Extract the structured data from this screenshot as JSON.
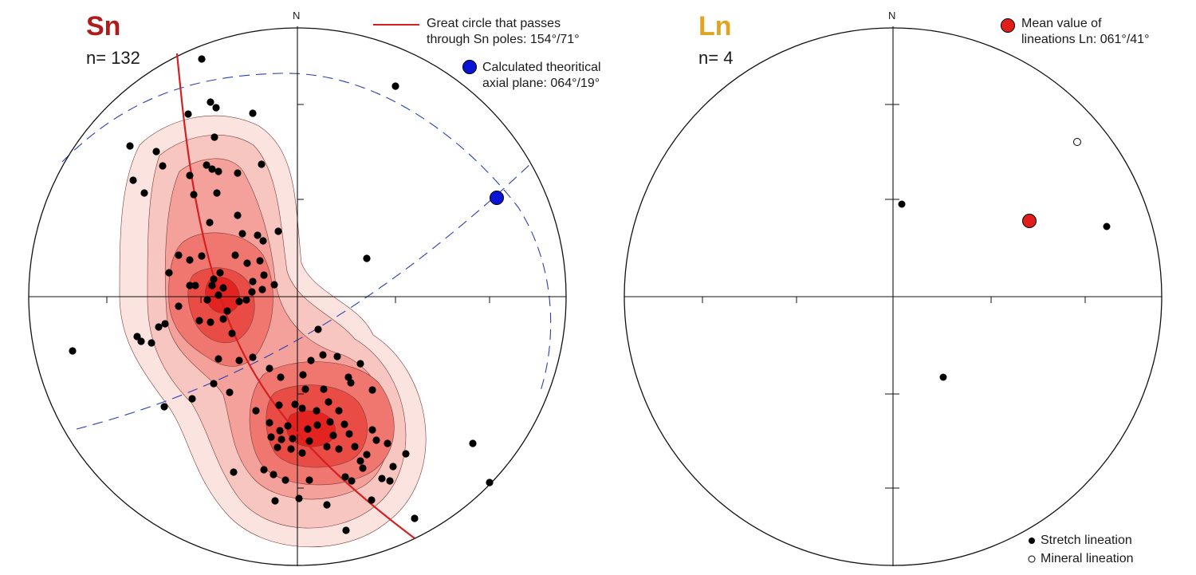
{
  "left_panel": {
    "title": "Sn",
    "title_color": "#b01c1c",
    "count_label": "n= 132",
    "north_label": "N",
    "legend": {
      "great_circle_text": "Great circle that passes\nthrough Sn poles: 154°/71°",
      "great_circle_color": "#d42020",
      "axial_plane_text": "Calculated theoritical\naxial plane: 064°/19°",
      "axial_plane_color": "#0a14d6"
    },
    "contour_colors": [
      "#fbe3e0",
      "#f8c6c1",
      "#f4a19b",
      "#ef7770",
      "#e94b45",
      "#e3231f"
    ],
    "dashed_line_color": "#2a3fb0"
  },
  "right_panel": {
    "title": "Ln",
    "title_color": "#e0a322",
    "count_label": "n= 4",
    "north_label": "N",
    "legend": {
      "mean_text": "Mean value of\nlineations Ln: 061°/41°",
      "mean_color": "#e21b1b",
      "stretch_text": "Stretch lineation",
      "mineral_text": "Mineral lineation"
    }
  }
}
